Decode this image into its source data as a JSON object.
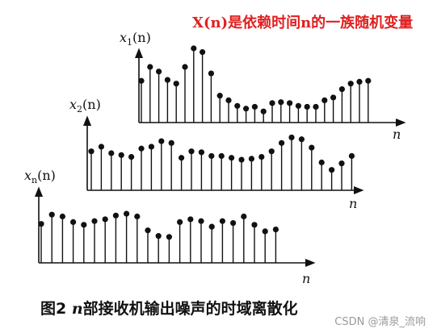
{
  "header": {
    "title": "X(n)是依赖时间n的一族随机变量"
  },
  "figure": {
    "caption_prefix": "图2 ",
    "caption_var": "n",
    "caption_rest": "部接收机输出噪声的时域离散化",
    "watermark": "CSDN @清泉_流响"
  },
  "colors": {
    "title": "#e02020",
    "ink": "#111111"
  },
  "plots": [
    {
      "name": "x1",
      "y_label_base": "x",
      "y_label_sub": "1",
      "y_label_arg": "(n)",
      "x_label": "n",
      "values": [
        0.45,
        0.6,
        0.55,
        0.46,
        0.42,
        0.6,
        0.8,
        0.76,
        0.53,
        0.29,
        0.24,
        0.18,
        0.15,
        0.17,
        0.12,
        0.21,
        0.22,
        0.21,
        0.18,
        0.17,
        0.17,
        0.24,
        0.27,
        0.36,
        0.42,
        0.44,
        0.45
      ]
    },
    {
      "name": "x2",
      "y_label_base": "x",
      "y_label_sub": "2",
      "y_label_arg": "(n)",
      "x_label": "n",
      "values": [
        0.42,
        0.47,
        0.4,
        0.38,
        0.36,
        0.45,
        0.47,
        0.53,
        0.51,
        0.35,
        0.42,
        0.41,
        0.37,
        0.37,
        0.35,
        0.33,
        0.34,
        0.36,
        0.42,
        0.51,
        0.57,
        0.55,
        0.46,
        0.3,
        0.22,
        0.29,
        0.37
      ]
    },
    {
      "name": "xn",
      "y_label_base": "x",
      "y_label_sub": "n",
      "y_label_arg": "(n)",
      "x_label": "n",
      "values": [
        0.42,
        0.52,
        0.5,
        0.44,
        0.41,
        0.45,
        0.47,
        0.51,
        0.53,
        0.5,
        0.35,
        0.29,
        0.28,
        0.44,
        0.47,
        0.45,
        0.39,
        0.45,
        0.43,
        0.5,
        0.41,
        0.34,
        0.36
      ]
    }
  ]
}
